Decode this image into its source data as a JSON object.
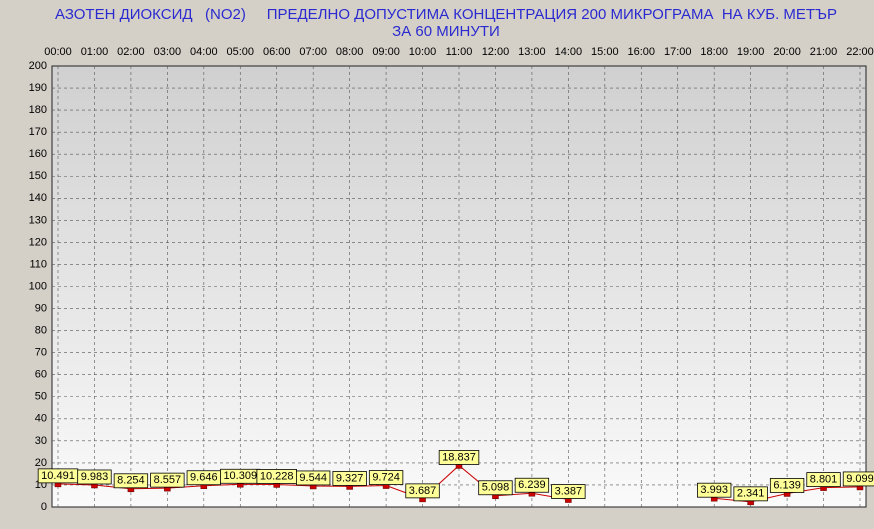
{
  "chart_data": {
    "type": "line",
    "title": "АЗОТЕН ДИОКСИД   (NO2)     ПРЕДЕЛНО ДОПУСТИМА КОНЦЕНТРАЦИЯ 200 МИКРОГРАМА  НА КУБ. МЕТЪР",
    "subtitle": "ЗА 60 МИНУТИ",
    "categories": [
      "00:00",
      "01:00",
      "02:00",
      "03:00",
      "04:00",
      "05:00",
      "06:00",
      "07:00",
      "08:00",
      "09:00",
      "10:00",
      "11:00",
      "12:00",
      "13:00",
      "14:00",
      "15:00",
      "16:00",
      "17:00",
      "18:00",
      "19:00",
      "20:00",
      "21:00",
      "22:00"
    ],
    "values": [
      10.491,
      9.983,
      8.254,
      8.557,
      9.646,
      10.309,
      10.228,
      9.544,
      9.327,
      9.724,
      3.687,
      18.837,
      5.098,
      6.239,
      3.387,
      null,
      null,
      null,
      3.993,
      2.341,
      6.139,
      8.801,
      9.099
    ],
    "color": "#cc0000",
    "ylim": [
      0,
      200
    ],
    "yticks": [
      0,
      10,
      20,
      30,
      40,
      50,
      60,
      70,
      80,
      90,
      100,
      110,
      120,
      130,
      140,
      150,
      160,
      170,
      180,
      190,
      200
    ],
    "grid": true,
    "x_axis_position": "top"
  }
}
